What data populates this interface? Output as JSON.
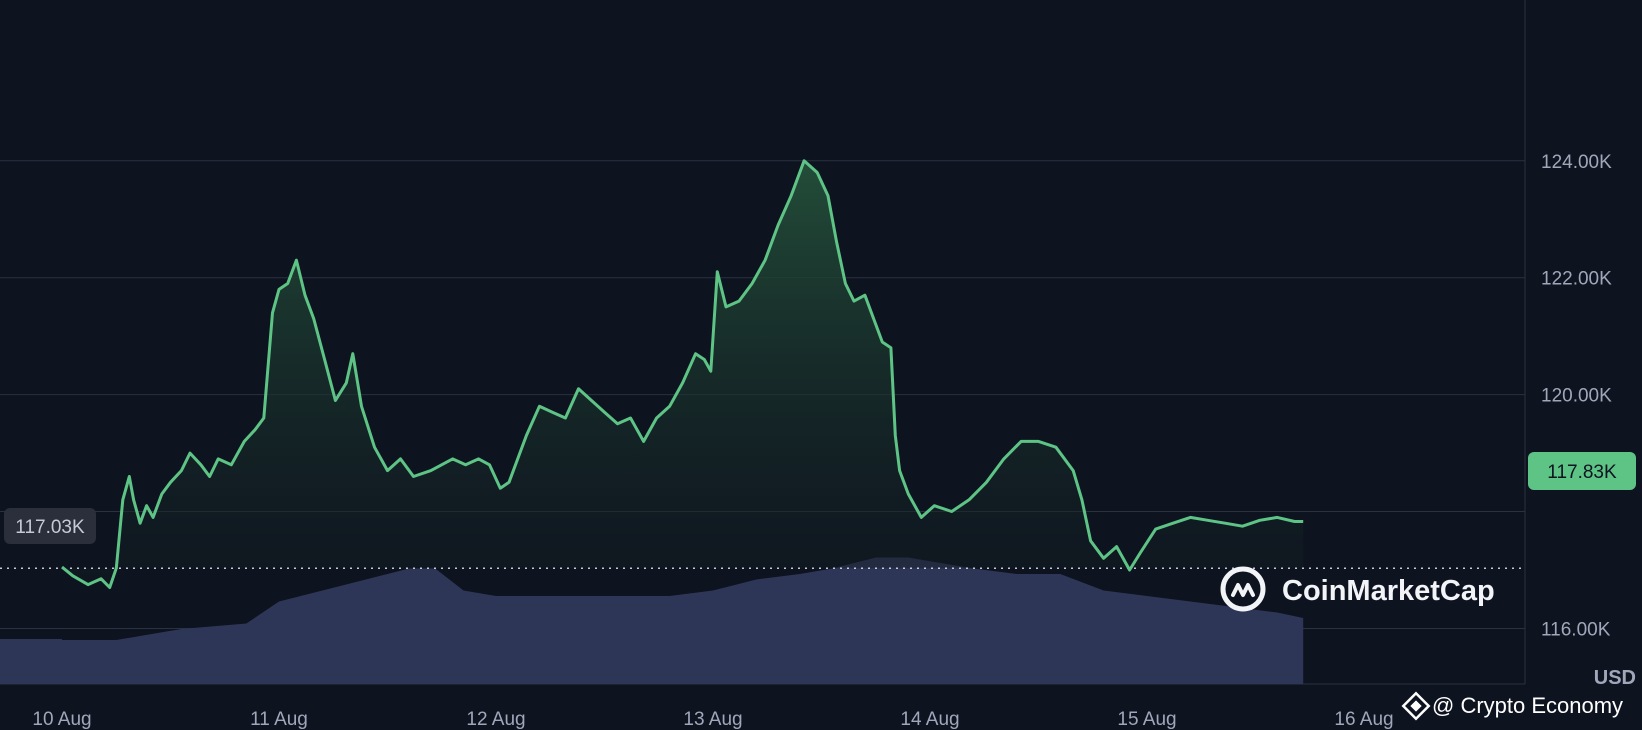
{
  "chart_data": {
    "type": "area",
    "x_ticks": [
      "10 Aug",
      "11 Aug",
      "12 Aug",
      "13 Aug",
      "14 Aug",
      "15 Aug",
      "16 Aug"
    ],
    "y_ticks": [
      "124.00K",
      "122.00K",
      "120.00K",
      "116.00K"
    ],
    "y_tick_values": [
      124000,
      122000,
      120000,
      118000,
      116000
    ],
    "ylim": [
      115050,
      126750
    ],
    "unit": "USD",
    "start_price_label": "117.03K",
    "start_price": 117030,
    "current_price_label": "117.83K",
    "current_price": 117830,
    "grid": true,
    "series": [
      {
        "values": [
          [
            0.0,
            117.05
          ],
          [
            0.05,
            116.9
          ],
          [
            0.12,
            116.75
          ],
          [
            0.18,
            116.85
          ],
          [
            0.22,
            116.7
          ],
          [
            0.25,
            117.03
          ],
          [
            0.28,
            118.2
          ],
          [
            0.31,
            118.6
          ],
          [
            0.33,
            118.2
          ],
          [
            0.36,
            117.8
          ],
          [
            0.39,
            118.1
          ],
          [
            0.42,
            117.9
          ],
          [
            0.46,
            118.3
          ],
          [
            0.5,
            118.5
          ],
          [
            0.55,
            118.7
          ],
          [
            0.59,
            119.0
          ],
          [
            0.64,
            118.8
          ],
          [
            0.68,
            118.6
          ],
          [
            0.72,
            118.9
          ],
          [
            0.78,
            118.8
          ],
          [
            0.84,
            119.2
          ],
          [
            0.89,
            119.4
          ],
          [
            0.93,
            119.6
          ],
          [
            0.97,
            121.4
          ],
          [
            1.0,
            121.8
          ],
          [
            1.04,
            121.9
          ],
          [
            1.08,
            122.3
          ],
          [
            1.12,
            121.7
          ],
          [
            1.16,
            121.3
          ],
          [
            1.21,
            120.6
          ],
          [
            1.26,
            119.9
          ],
          [
            1.31,
            120.2
          ],
          [
            1.34,
            120.7
          ],
          [
            1.38,
            119.8
          ],
          [
            1.44,
            119.1
          ],
          [
            1.5,
            118.7
          ],
          [
            1.56,
            118.9
          ],
          [
            1.62,
            118.6
          ],
          [
            1.7,
            118.7
          ],
          [
            1.8,
            118.9
          ],
          [
            1.86,
            118.8
          ],
          [
            1.92,
            118.9
          ],
          [
            1.97,
            118.8
          ],
          [
            2.02,
            118.4
          ],
          [
            2.06,
            118.5
          ],
          [
            2.1,
            118.9
          ],
          [
            2.14,
            119.3
          ],
          [
            2.2,
            119.8
          ],
          [
            2.26,
            119.7
          ],
          [
            2.32,
            119.6
          ],
          [
            2.38,
            120.1
          ],
          [
            2.44,
            119.9
          ],
          [
            2.5,
            119.7
          ],
          [
            2.56,
            119.5
          ],
          [
            2.62,
            119.6
          ],
          [
            2.68,
            119.2
          ],
          [
            2.74,
            119.6
          ],
          [
            2.8,
            119.8
          ],
          [
            2.86,
            120.2
          ],
          [
            2.92,
            120.7
          ],
          [
            2.96,
            120.6
          ],
          [
            2.99,
            120.4
          ],
          [
            3.02,
            122.1
          ],
          [
            3.06,
            121.5
          ],
          [
            3.12,
            121.6
          ],
          [
            3.18,
            121.9
          ],
          [
            3.24,
            122.3
          ],
          [
            3.3,
            122.9
          ],
          [
            3.36,
            123.4
          ],
          [
            3.42,
            124.0
          ],
          [
            3.48,
            123.8
          ],
          [
            3.53,
            123.4
          ],
          [
            3.57,
            122.6
          ],
          [
            3.61,
            121.9
          ],
          [
            3.65,
            121.6
          ],
          [
            3.7,
            121.7
          ],
          [
            3.74,
            121.3
          ],
          [
            3.78,
            120.9
          ],
          [
            3.82,
            120.8
          ],
          [
            3.84,
            119.3
          ],
          [
            3.86,
            118.7
          ],
          [
            3.9,
            118.3
          ],
          [
            3.96,
            117.9
          ],
          [
            4.02,
            118.1
          ],
          [
            4.1,
            118.0
          ],
          [
            4.18,
            118.2
          ],
          [
            4.26,
            118.5
          ],
          [
            4.34,
            118.9
          ],
          [
            4.42,
            119.2
          ],
          [
            4.5,
            119.2
          ],
          [
            4.58,
            119.1
          ],
          [
            4.66,
            118.7
          ],
          [
            4.7,
            118.2
          ],
          [
            4.74,
            117.5
          ],
          [
            4.8,
            117.2
          ],
          [
            4.86,
            117.4
          ],
          [
            4.92,
            117.0
          ],
          [
            4.97,
            117.3
          ],
          [
            5.04,
            117.7
          ],
          [
            5.12,
            117.8
          ],
          [
            5.2,
            117.9
          ],
          [
            5.28,
            117.85
          ],
          [
            5.36,
            117.8
          ],
          [
            5.44,
            117.75
          ],
          [
            5.52,
            117.85
          ],
          [
            5.6,
            117.9
          ],
          [
            5.68,
            117.83
          ],
          [
            5.72,
            117.83
          ]
        ]
      }
    ],
    "volume_series": {
      "values": [
        [
          0.0,
          0.08
        ],
        [
          0.25,
          0.08
        ],
        [
          0.55,
          0.1
        ],
        [
          0.85,
          0.11
        ],
        [
          1.0,
          0.15
        ],
        [
          1.2,
          0.17
        ],
        [
          1.4,
          0.19
        ],
        [
          1.6,
          0.21
        ],
        [
          1.72,
          0.21
        ],
        [
          1.85,
          0.17
        ],
        [
          2.0,
          0.16
        ],
        [
          2.2,
          0.16
        ],
        [
          2.4,
          0.16
        ],
        [
          2.6,
          0.16
        ],
        [
          2.8,
          0.16
        ],
        [
          3.0,
          0.17
        ],
        [
          3.2,
          0.19
        ],
        [
          3.4,
          0.2
        ],
        [
          3.55,
          0.21
        ],
        [
          3.65,
          0.22
        ],
        [
          3.75,
          0.23
        ],
        [
          3.9,
          0.23
        ],
        [
          4.05,
          0.22
        ],
        [
          4.2,
          0.21
        ],
        [
          4.4,
          0.2
        ],
        [
          4.6,
          0.2
        ],
        [
          4.8,
          0.17
        ],
        [
          5.0,
          0.16
        ],
        [
          5.2,
          0.15
        ],
        [
          5.4,
          0.14
        ],
        [
          5.6,
          0.13
        ],
        [
          5.72,
          0.12
        ]
      ]
    },
    "colors": {
      "line_up": "#5ec485",
      "line_down": "#e2454c",
      "area_top": "#24503a",
      "area_bottom": "#101a1f",
      "volume": "#2e3657",
      "badge_up_bg": "#5ec485",
      "badge_up_text": "#0e1320",
      "badge_start_bg": "#2a2f3b",
      "badge_start_text": "#c5cad6",
      "background": "#0e1320",
      "grid": "#2a3140"
    }
  },
  "branding": {
    "name": "CoinMarketCap",
    "logo_icon": "coinmarketcap-logo-icon"
  },
  "credit": {
    "text": "@ Crypto Economy",
    "icon": "binance-diamond-icon"
  }
}
